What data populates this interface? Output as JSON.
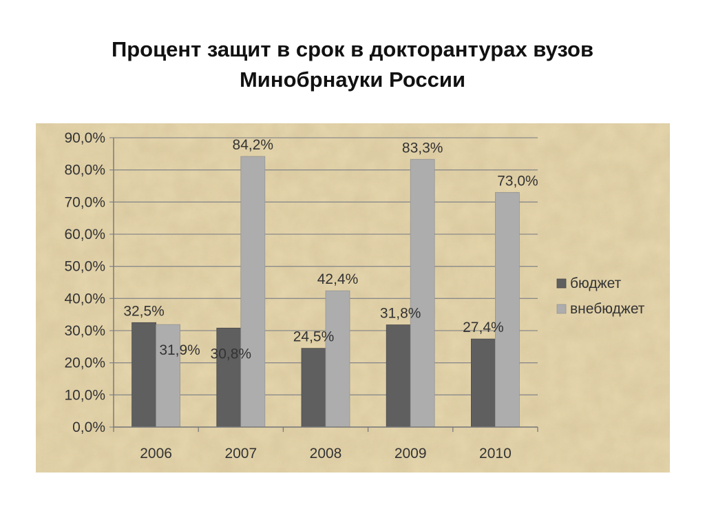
{
  "slide": {
    "title_line1": "Процент защит в срок в докторантурах вузов",
    "title_line2": "Минобрнауки России"
  },
  "chart_data": {
    "type": "bar",
    "title": "",
    "xlabel": "",
    "ylabel": "",
    "categories": [
      "2006",
      "2007",
      "2008",
      "2009",
      "2010"
    ],
    "series": [
      {
        "name": "бюджет",
        "values": [
          32.5,
          30.8,
          24.5,
          31.8,
          27.4
        ],
        "labels": [
          "32,5%",
          "30,8%",
          "24,5%",
          "31,8%",
          "27,4%"
        ],
        "color": "#5f5f5f"
      },
      {
        "name": "внебюджет",
        "values": [
          31.9,
          84.2,
          42.4,
          83.3,
          73.0
        ],
        "labels": [
          "31,9%",
          "84,2%",
          "42,4%",
          "83,3%",
          "73,0%"
        ],
        "color": "#adadad"
      }
    ],
    "ylim": [
      0,
      90
    ],
    "yticks": [
      0,
      10,
      20,
      30,
      40,
      50,
      60,
      70,
      80,
      90
    ],
    "ytick_labels": [
      "0,0%",
      "10,0%",
      "20,0%",
      "30,0%",
      "40,0%",
      "50,0%",
      "60,0%",
      "70,0%",
      "80,0%",
      "90,0%"
    ],
    "grid": true,
    "legend": "right",
    "background": "#e6d6ad"
  }
}
